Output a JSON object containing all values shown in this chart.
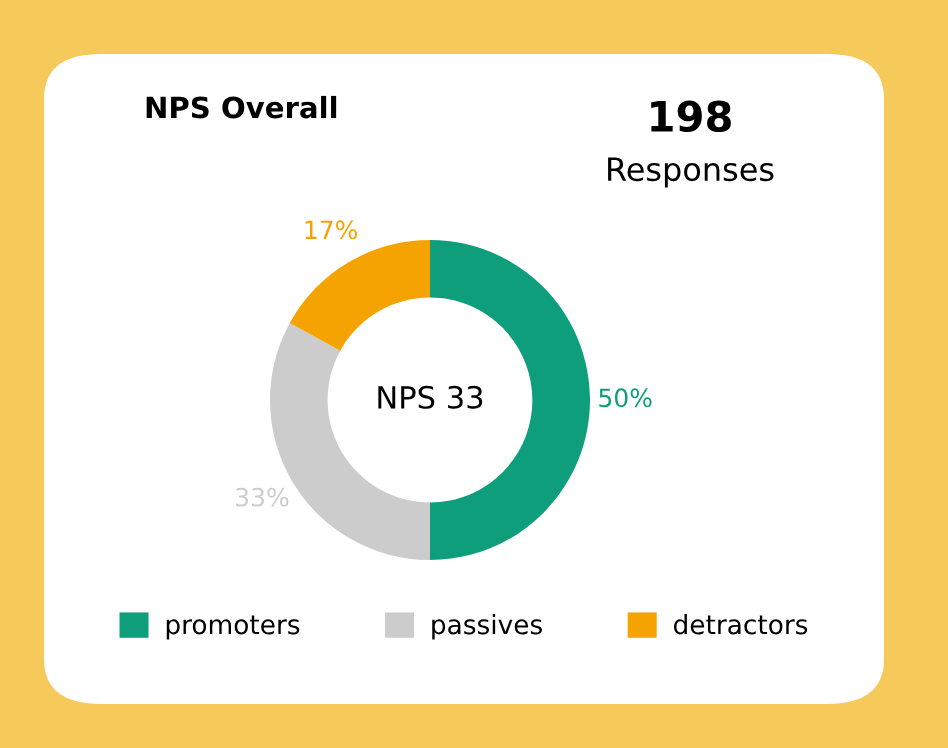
{
  "chart_data": {
    "type": "donut",
    "title": "NPS Overall",
    "annotations": [
      "198",
      "Responses",
      "NPS 33"
    ],
    "categories": [
      "promoters",
      "passives",
      "detractors"
    ],
    "values": [
      50,
      33,
      17
    ],
    "colors": [
      "#0f9e7b",
      "#cccccc",
      "#f5a300"
    ],
    "value_labels": [
      "50%",
      "33%",
      "17%"
    ],
    "legend": "bottom"
  }
}
